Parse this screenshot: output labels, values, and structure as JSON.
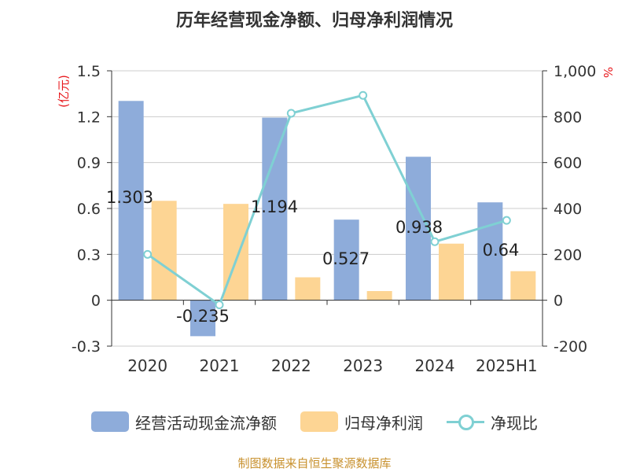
{
  "colors": {
    "cash_flow": "#8eacda",
    "net_profit": "#fdd594",
    "ratio": "#7fd0d3",
    "unit": "#e8191d"
  },
  "chart_data": {
    "type": "bar",
    "title": "历年经营现金净额、归母净利润情况",
    "categories": [
      "2020",
      "2021",
      "2022",
      "2023",
      "2024",
      "2025H1"
    ],
    "y_left": {
      "unit": "(亿元)",
      "ylim": [
        -0.3,
        1.5
      ],
      "ticks": [
        "-0.3",
        "0",
        "0.3",
        "0.6",
        "0.9",
        "1.2",
        "1.5"
      ],
      "tick_values": [
        -0.3,
        0,
        0.3,
        0.6,
        0.9,
        1.2,
        1.5
      ]
    },
    "y_right": {
      "unit": "%",
      "ylim": [
        -200,
        1000
      ],
      "ticks": [
        "-200",
        "0",
        "200",
        "400",
        "600",
        "800",
        "1,000"
      ],
      "tick_values": [
        -200,
        0,
        200,
        400,
        600,
        800,
        1000
      ]
    },
    "series": [
      {
        "name": "经营活动现金流净额",
        "type": "bar",
        "axis": "left",
        "values": [
          1.303,
          -0.235,
          1.194,
          0.527,
          0.938,
          0.64
        ],
        "labels": [
          "1.303",
          "-0.235",
          "1.194",
          "0.527",
          "0.938",
          "0.64"
        ]
      },
      {
        "name": "归母净利润",
        "type": "bar",
        "axis": "left",
        "values": [
          0.65,
          0.63,
          0.15,
          0.06,
          0.37,
          0.19
        ]
      },
      {
        "name": "净现比",
        "type": "line",
        "axis": "right",
        "values": [
          200,
          -20,
          815,
          893,
          255,
          348
        ]
      }
    ],
    "grid": true,
    "legend": "bottom"
  },
  "legend": {
    "cash_flow": "经营活动现金流净额",
    "net_profit": "归母净利润",
    "ratio": "净现比"
  },
  "source": "制图数据来自恒生聚源数据库"
}
